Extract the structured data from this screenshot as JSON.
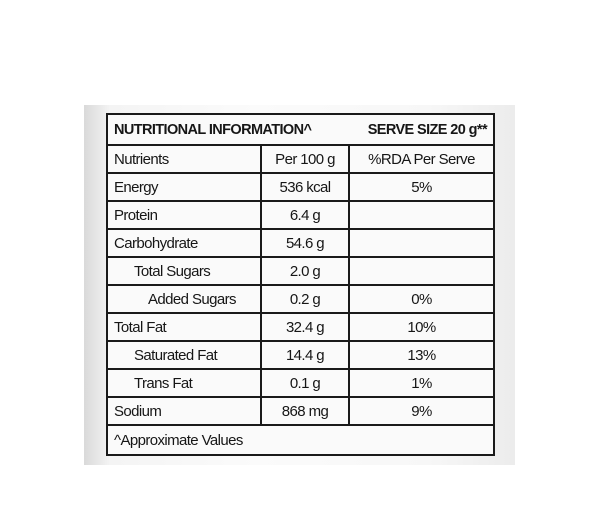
{
  "label": {
    "title": "NUTRITIONAL INFORMATION^",
    "serve_size": "SERVE SIZE 20 g**",
    "columns": [
      "Nutrients",
      "Per 100 g",
      "%RDA Per Serve"
    ],
    "rows": [
      {
        "nutrient": "Energy",
        "per100": "536 kcal",
        "rda": "5%",
        "indent": 0
      },
      {
        "nutrient": "Protein",
        "per100": "6.4 g",
        "rda": "",
        "indent": 0
      },
      {
        "nutrient": "Carbohydrate",
        "per100": "54.6 g",
        "rda": "",
        "indent": 0
      },
      {
        "nutrient": "Total Sugars",
        "per100": "2.0 g",
        "rda": "",
        "indent": 1
      },
      {
        "nutrient": "Added Sugars",
        "per100": "0.2 g",
        "rda": "0%",
        "indent": 2
      },
      {
        "nutrient": "Total Fat",
        "per100": "32.4 g",
        "rda": "10%",
        "indent": 0
      },
      {
        "nutrient": "Saturated Fat",
        "per100": "14.4 g",
        "rda": "13%",
        "indent": 1
      },
      {
        "nutrient": "Trans Fat",
        "per100": "0.1 g",
        "rda": "1%",
        "indent": 1
      },
      {
        "nutrient": "Sodium",
        "per100": "868 mg",
        "rda": "9%",
        "indent": 0
      }
    ],
    "footnote": "^Approximate Values"
  }
}
